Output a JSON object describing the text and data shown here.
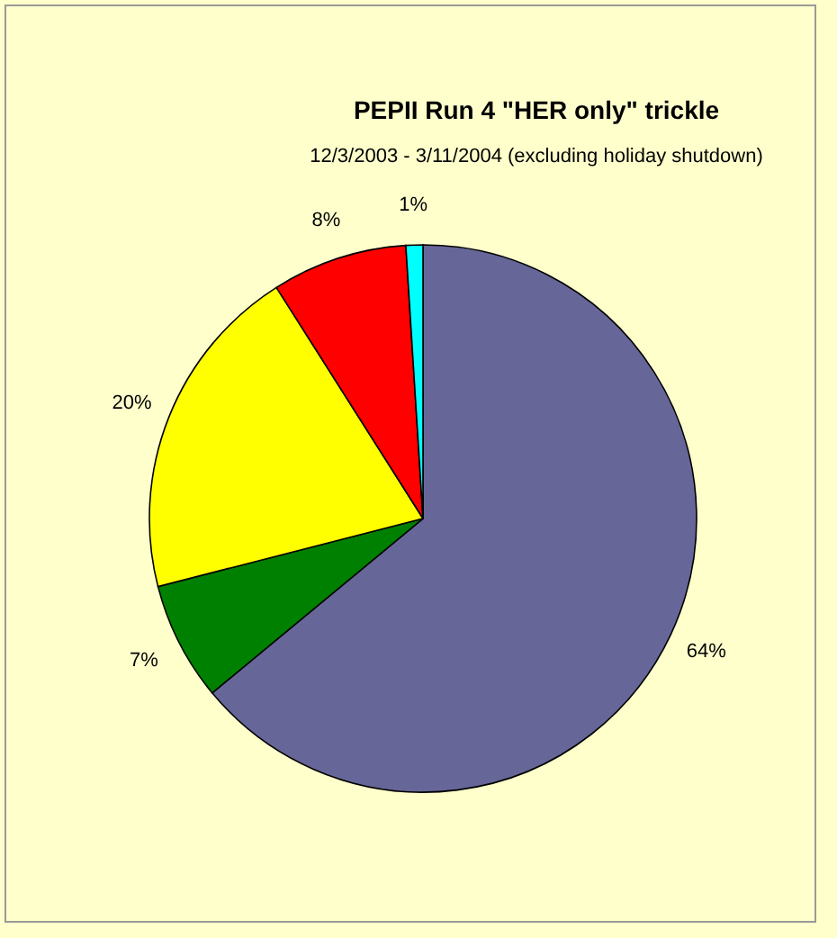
{
  "chart_data": {
    "type": "pie",
    "title": "PEPII Run 4 \"HER only\" trickle",
    "subtitle": "12/3/2003 - 3/11/2004 (excluding holiday shutdown)",
    "categories": [
      null,
      null,
      null,
      null,
      null
    ],
    "values": [
      64,
      7,
      20,
      8,
      1
    ],
    "colors": [
      "#666699",
      "#008000",
      "#ffff00",
      "#ff0000",
      "#00ffff"
    ],
    "value_labels": [
      "64%",
      "7%",
      "20%",
      "8%",
      "1%"
    ]
  }
}
